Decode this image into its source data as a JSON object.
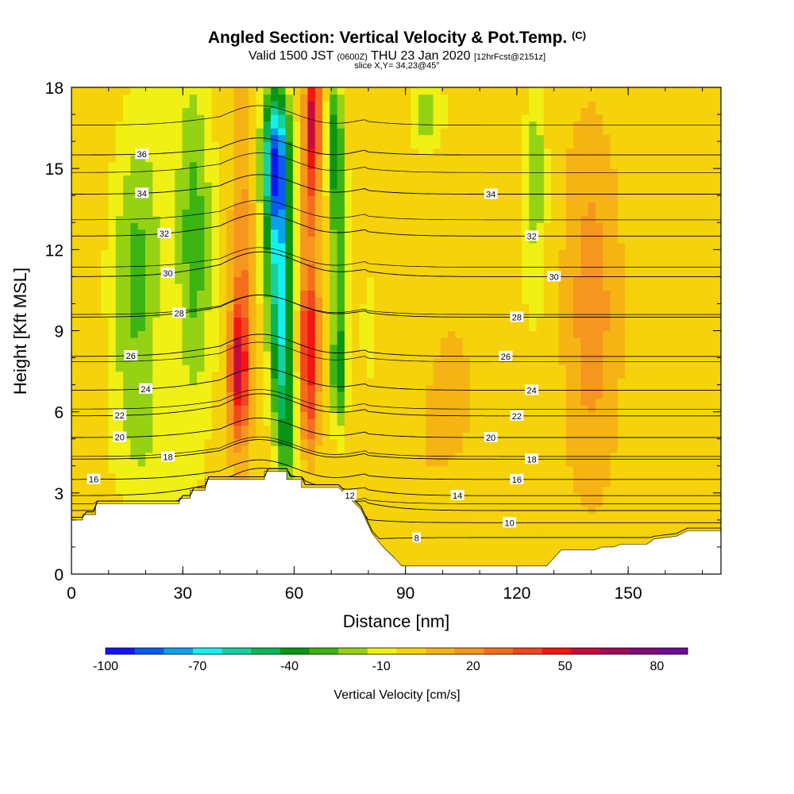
{
  "header": {
    "title": "Angled Section: Vertical Velocity & Pot.Temp.",
    "title_mark": "(C)",
    "valid_prefix": "Valid 1500 JST",
    "valid_z": "(0600Z)",
    "valid_date": "THU 23 Jan 2020",
    "forecast": "[12hrFcst@2151z]",
    "slice": "slice X,Y= 34,23@45°"
  },
  "colors": {
    "colorbar": [
      "#1414ff",
      "#0a5af5",
      "#0aa0f0",
      "#14f0f0",
      "#14d2a0",
      "#0ab45a",
      "#0a9614",
      "#3cb414",
      "#96d214",
      "#f0f014",
      "#f5d20a",
      "#f5b414",
      "#f5961e",
      "#f56e1e",
      "#f5461e",
      "#f51414",
      "#c80a3c",
      "#a00a5a",
      "#820a78",
      "#6e0a96"
    ],
    "terrain": "#ffffff",
    "contour": "#000000"
  },
  "chart_data": {
    "type": "heatmap",
    "xlabel": "Distance [nm]",
    "ylabel": "Height [Kft MSL]",
    "xlim": [
      0,
      175
    ],
    "ylim": [
      0,
      18
    ],
    "xticks": [
      "0",
      "30",
      "60",
      "90",
      "120",
      "150"
    ],
    "yticks": [
      "0",
      "3",
      "6",
      "9",
      "12",
      "15",
      "18"
    ],
    "colorbar": {
      "label": "Vertical Velocity [cm/s]",
      "tick_labels": [
        "-100",
        "-70",
        "-40",
        "-10",
        "20",
        "50",
        "80"
      ],
      "range": [
        -100,
        90
      ],
      "step": 10
    },
    "terrain_profile": [
      [
        0,
        2.0
      ],
      [
        3,
        2.0
      ],
      [
        3,
        2.2
      ],
      [
        6.5,
        2.2
      ],
      [
        6.5,
        2.6
      ],
      [
        29,
        2.6
      ],
      [
        29,
        2.8
      ],
      [
        32,
        2.8
      ],
      [
        32,
        3.1
      ],
      [
        36,
        3.1
      ],
      [
        36,
        3.5
      ],
      [
        52,
        3.5
      ],
      [
        52,
        3.8
      ],
      [
        58,
        3.8
      ],
      [
        58,
        3.5
      ],
      [
        62,
        3.5
      ],
      [
        62,
        3.2
      ],
      [
        68,
        3.2
      ],
      [
        72,
        3.2
      ],
      [
        75,
        2.8
      ],
      [
        78,
        2.4
      ],
      [
        81,
        1.5
      ],
      [
        84,
        1.0
      ],
      [
        87,
        0.6
      ],
      [
        89,
        0.3
      ],
      [
        113,
        0.3
      ],
      [
        113,
        0.3
      ],
      [
        128,
        0.3
      ],
      [
        130,
        0.6
      ],
      [
        132,
        0.9
      ],
      [
        141,
        0.9
      ],
      [
        143,
        1.0
      ],
      [
        146,
        1.0
      ],
      [
        148,
        1.1
      ],
      [
        155,
        1.1
      ],
      [
        157,
        1.3
      ],
      [
        163,
        1.4
      ],
      [
        166,
        1.6
      ],
      [
        175,
        1.6
      ]
    ],
    "velocity_field": {
      "background": 5,
      "features": [
        {
          "x": 18,
          "y": 11,
          "sx": 7,
          "sy": 6,
          "w": -28
        },
        {
          "x": 19,
          "y": 4.5,
          "sx": 10,
          "sy": 2.5,
          "w": -8
        },
        {
          "x": 33,
          "y": 12,
          "sx": 5,
          "sy": 6,
          "w": -32
        },
        {
          "x": 45,
          "y": 7.5,
          "sx": 2.6,
          "sy": 2.5,
          "w": 52
        },
        {
          "x": 46,
          "y": 11,
          "sx": 3,
          "sy": 5,
          "w": 25
        },
        {
          "x": 55,
          "y": 15.5,
          "sx": 3.5,
          "sy": 2.5,
          "w": -82
        },
        {
          "x": 56,
          "y": 12,
          "sx": 3.5,
          "sy": 3.5,
          "w": -60
        },
        {
          "x": 57,
          "y": 8,
          "sx": 3,
          "sy": 3,
          "w": -45
        },
        {
          "x": 58,
          "y": 5,
          "sx": 3,
          "sy": 2,
          "w": -25
        },
        {
          "x": 65,
          "y": 17,
          "sx": 2.2,
          "sy": 2,
          "w": 58
        },
        {
          "x": 64,
          "y": 14,
          "sx": 2.5,
          "sy": 2.5,
          "w": 30
        },
        {
          "x": 64,
          "y": 8.5,
          "sx": 2.5,
          "sy": 2.5,
          "w": 55
        },
        {
          "x": 64,
          "y": 5.5,
          "sx": 2,
          "sy": 1.5,
          "w": 20
        },
        {
          "x": 71,
          "y": 16,
          "sx": 2,
          "sy": 2.5,
          "w": -38
        },
        {
          "x": 72,
          "y": 12,
          "sx": 2.2,
          "sy": 3.5,
          "w": -30
        },
        {
          "x": 72,
          "y": 7.5,
          "sx": 2,
          "sy": 2,
          "w": -42
        },
        {
          "x": 95,
          "y": 17,
          "sx": 4,
          "sy": 1.2,
          "w": -22
        },
        {
          "x": 125,
          "y": 15,
          "sx": 3,
          "sy": 4,
          "w": -22
        },
        {
          "x": 140,
          "y": 10,
          "sx": 7,
          "sy": 8,
          "w": 18
        },
        {
          "x": 100,
          "y": 5,
          "sx": 12,
          "sy": 4,
          "w": 6
        },
        {
          "x": 5,
          "y": 9,
          "sx": 4,
          "sy": 5,
          "w": 8
        },
        {
          "x": 80,
          "y": 9,
          "sx": 3,
          "sy": 3,
          "w": -5
        }
      ]
    },
    "isentropes": [
      {
        "value": 8,
        "base": 1.35,
        "mtn": -0.2,
        "label_at": 93
      },
      {
        "value": 10,
        "base": 1.9,
        "mtn": 0.4,
        "label_at": 118
      },
      {
        "value": 12,
        "base": 2.35,
        "mtn": 1.0,
        "label_at": 75
      },
      {
        "value": 14,
        "base": 2.9,
        "mtn": 0.8,
        "label_at": 104
      },
      {
        "value": 16,
        "base": 3.5,
        "mtn": 0.5,
        "label_at": 6
      },
      {
        "value": 16,
        "base": 3.5,
        "mtn": 0.5,
        "label_at": 120
      },
      {
        "value": 18,
        "base": 4.25,
        "mtn": 0.5,
        "label_at": 26
      },
      {
        "value": 18,
        "base": 4.25,
        "mtn": 0.5,
        "label_at": 124
      },
      {
        "value": 20,
        "base": 5.05,
        "mtn": 0.5,
        "label_at": 13
      },
      {
        "value": 20,
        "base": 5.05,
        "mtn": 0.5,
        "label_at": 113
      },
      {
        "value": 22,
        "base": 5.85,
        "mtn": 0.6,
        "label_at": 13
      },
      {
        "value": 22,
        "base": 5.85,
        "mtn": 0.6,
        "label_at": 120
      },
      {
        "value": 24,
        "base": 6.8,
        "mtn": 0.6,
        "label_at": 20
      },
      {
        "value": 24,
        "base": 6.8,
        "mtn": 0.6,
        "label_at": 124
      },
      {
        "value": 26,
        "base": 8.05,
        "mtn": 0.6,
        "label_at": 16
      },
      {
        "value": 26,
        "base": 8.05,
        "mtn": 0.6,
        "label_at": 117
      },
      {
        "value": 28,
        "base": 9.5,
        "mtn": 0.6,
        "label_at": 29
      },
      {
        "value": 28,
        "base": 9.5,
        "mtn": 0.6,
        "label_at": 120
      },
      {
        "value": 30,
        "base": 11.0,
        "mtn": 0.7,
        "label_at": 26
      },
      {
        "value": 30,
        "base": 11.0,
        "mtn": 0.7,
        "label_at": 130
      },
      {
        "value": 32,
        "base": 12.5,
        "mtn": 0.6,
        "label_at": 25
      },
      {
        "value": 32,
        "base": 12.5,
        "mtn": 0.6,
        "label_at": 124
      },
      {
        "value": 34,
        "base": 14.05,
        "mtn": 0.5,
        "label_at": 19
      },
      {
        "value": 34,
        "base": 14.05,
        "mtn": 0.5,
        "label_at": 113
      },
      {
        "value": 36,
        "base": 15.5,
        "mtn": 0.4,
        "label_at": 19
      }
    ],
    "extra_contours": 9
  }
}
